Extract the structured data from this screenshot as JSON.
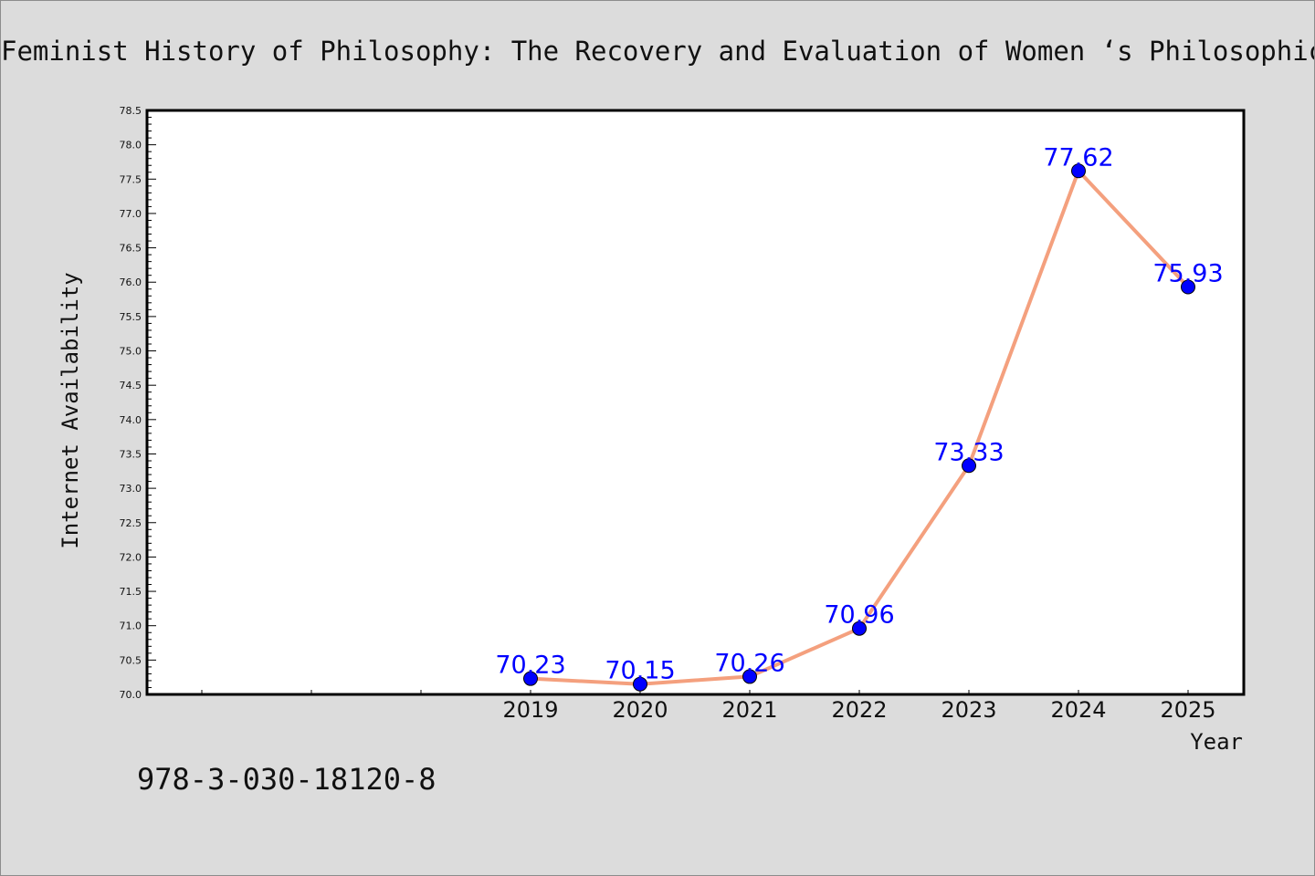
{
  "chart_data": {
    "type": "line",
    "title": "Feminist History of Philosophy: The Recovery and Evaluation of Women ‘s Philosophical Thought",
    "xlabel": "Year",
    "ylabel": "Internet Availability",
    "categories": [
      "2019",
      "2020",
      "2021",
      "2022",
      "2023",
      "2024",
      "2025"
    ],
    "series": [
      {
        "values": [
          70.23,
          70.15,
          70.26,
          70.96,
          73.33,
          77.62,
          75.93
        ]
      }
    ],
    "data_labels": [
      "70.23",
      "70.15",
      "70.26",
      "70.96",
      "73.33",
      "77.62",
      "75.93"
    ],
    "ylim": [
      70.0,
      78.5
    ],
    "y_ticks": [
      "70.0",
      "70.5",
      "71.0",
      "71.5",
      "72.0",
      "72.5",
      "73.0",
      "73.5",
      "74.0",
      "74.5",
      "75.0",
      "75.5",
      "76.0",
      "76.5",
      "77.0",
      "77.5",
      "78.0",
      "78.5"
    ],
    "grid": false,
    "line_color": "#f4a07e",
    "marker_color": "#0000ff",
    "label_color": "#0000ff",
    "background": "#dcdcdc",
    "plot_background": "#ffffff"
  },
  "footer": {
    "isbn": "978-3-030-18120-8"
  }
}
